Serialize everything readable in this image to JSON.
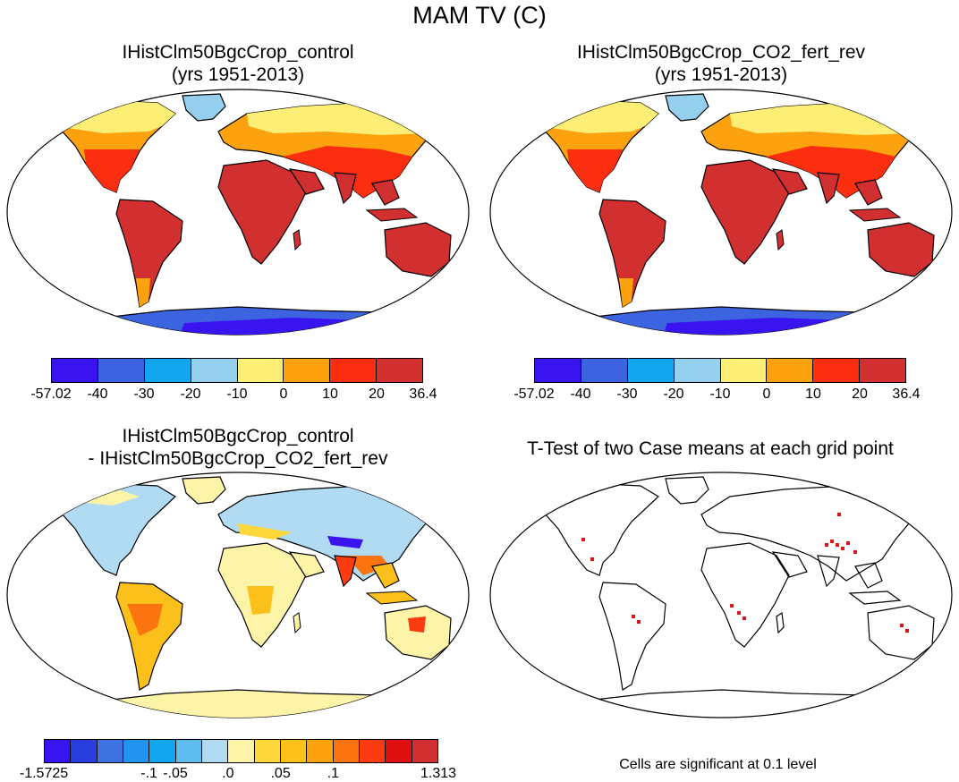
{
  "figure": {
    "main_title": "MAM TV (C)",
    "note": "Cells are significant at 0.1 level"
  },
  "panels": [
    {
      "title_line1": "IHistClm50BgcCrop_control",
      "title_line2": "(yrs 1951-2013)"
    },
    {
      "title_line1": "IHistClm50BgcCrop_CO2_fert_rev",
      "title_line2": "(yrs 1951-2013)"
    },
    {
      "title_line1": "IHistClm50BgcCrop_control",
      "title_line2": "- IHistClm50BgcCrop_CO2_fert_rev"
    },
    {
      "title_line1": "T-Test of two Case means at each grid point",
      "title_line2": ""
    }
  ],
  "colorbars": {
    "absolute": {
      "colors": [
        "#3a14f0",
        "#3d64e0",
        "#12a6f0",
        "#95cfee",
        "#fdee75",
        "#fca20f",
        "#fc2e10",
        "#d23030"
      ],
      "ticks": [
        "-57.02",
        "-40",
        "-30",
        "-20",
        "-10",
        "0",
        "10",
        "20",
        "36.4"
      ]
    },
    "difference": {
      "colors": [
        "#3a14f0",
        "#2a3ee0",
        "#3d73e0",
        "#2294f0",
        "#12a6f0",
        "#5fbcee",
        "#b0dbf2",
        "#fdf4a8",
        "#fdd83a",
        "#fcc01a",
        "#fca20f",
        "#fc7410",
        "#fc3c10",
        "#e01010",
        "#d23030"
      ],
      "ticks": [
        "-1.5725",
        "-.1",
        "-.05",
        ".0",
        ".05",
        ".1",
        "1.313"
      ]
    }
  },
  "legend_colors": {
    "significant": "#e01515",
    "ocean": "#ffffff",
    "coast": "#000000"
  }
}
